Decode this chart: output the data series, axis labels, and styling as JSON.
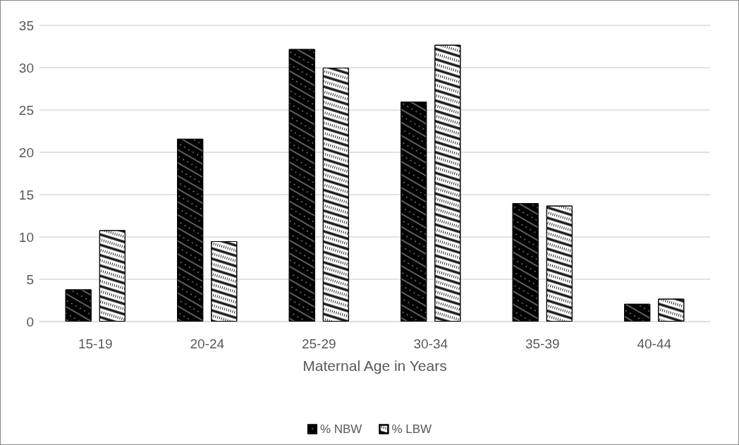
{
  "chart_data": {
    "type": "bar",
    "xlabel": "Maternal Age in Years",
    "categories": [
      "15-19",
      "20-24",
      "25-29",
      "30-34",
      "35-39",
      "40-44"
    ],
    "series": [
      {
        "name": "% NBW",
        "color": "#000000",
        "values": [
          3.8,
          21.6,
          32.2,
          26.0,
          14.0,
          2.1
        ]
      },
      {
        "name": "% LBW",
        "color": "#ffffff",
        "values": [
          10.8,
          9.5,
          30.0,
          32.7,
          13.7,
          2.7
        ]
      }
    ],
    "ylim": [
      0,
      35
    ],
    "yticks": [
      0,
      5,
      10,
      15,
      20,
      25,
      30,
      35
    ],
    "grid": "y",
    "legend": "bottom"
  }
}
